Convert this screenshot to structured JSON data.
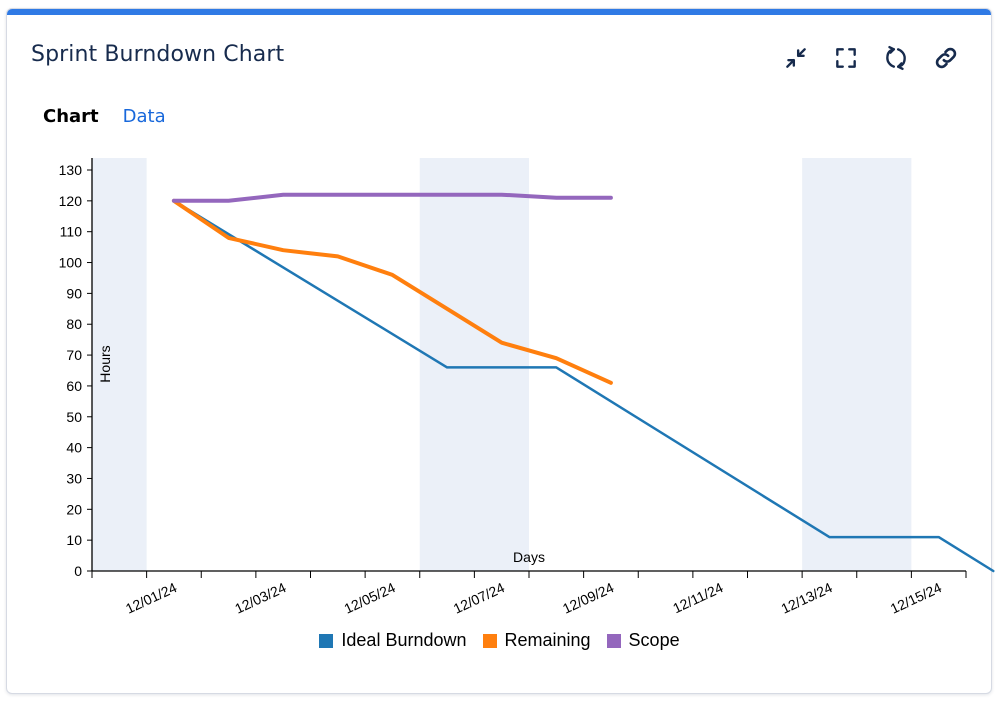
{
  "header": {
    "title": "Sprint Burndown Chart"
  },
  "actions": {
    "collapse_icon": "collapse-icon",
    "fullscreen_icon": "fullscreen-icon",
    "refresh_icon": "refresh-icon",
    "link_icon": "link-icon"
  },
  "tabs": [
    {
      "label": "Chart",
      "active": true
    },
    {
      "label": "Data",
      "active": false
    }
  ],
  "colors": {
    "accent": "#2f7ae5",
    "ideal": "#1f77b4",
    "remaining": "#ff7f0e",
    "scope": "#9467bd",
    "weekend": "#ebf0f8"
  },
  "chart_data": {
    "type": "line",
    "xlabel": "Days",
    "ylabel": "Hours",
    "ylim": [
      0,
      130
    ],
    "yticks": [
      0,
      10,
      20,
      30,
      40,
      50,
      60,
      70,
      80,
      90,
      100,
      110,
      120,
      130
    ],
    "xlim": [
      "2024-11-30",
      "2024-12-16"
    ],
    "xtick_labels": [
      "12/01/24",
      "12/03/24",
      "12/05/24",
      "12/07/24",
      "12/09/24",
      "12/11/24",
      "12/13/24",
      "12/15/24"
    ],
    "xtick_label_dates": [
      "2024-12-01",
      "2024-12-03",
      "2024-12-05",
      "2024-12-07",
      "2024-12-09",
      "2024-12-11",
      "2024-12-13",
      "2024-12-15"
    ],
    "weekends": [
      [
        "2024-11-30",
        "2024-12-01"
      ],
      [
        "2024-12-06",
        "2024-12-08"
      ],
      [
        "2024-12-13",
        "2024-12-15"
      ]
    ],
    "series": [
      {
        "name": "Ideal Burndown",
        "color": "#1f77b4",
        "x": [
          "2024-12-01",
          "2024-12-06",
          "2024-12-07",
          "2024-12-08",
          "2024-12-13",
          "2024-12-14",
          "2024-12-15",
          "2024-12-16"
        ],
        "y": [
          120,
          66,
          66,
          66,
          11,
          11,
          11,
          0
        ]
      },
      {
        "name": "Remaining",
        "color": "#ff7f0e",
        "x": [
          "2024-12-01",
          "2024-12-02",
          "2024-12-03",
          "2024-12-04",
          "2024-12-05",
          "2024-12-06",
          "2024-12-07",
          "2024-12-08",
          "2024-12-09"
        ],
        "y": [
          120,
          108,
          104,
          102,
          96,
          85,
          74,
          69,
          61
        ]
      },
      {
        "name": "Scope",
        "color": "#9467bd",
        "x": [
          "2024-12-01",
          "2024-12-02",
          "2024-12-03",
          "2024-12-04",
          "2024-12-05",
          "2024-12-06",
          "2024-12-07",
          "2024-12-08",
          "2024-12-09"
        ],
        "y": [
          120,
          120,
          122,
          122,
          122,
          122,
          122,
          121,
          121
        ]
      }
    ],
    "legend": [
      "Ideal Burndown",
      "Remaining",
      "Scope"
    ],
    "legend_position": "bottom",
    "grid": false
  }
}
